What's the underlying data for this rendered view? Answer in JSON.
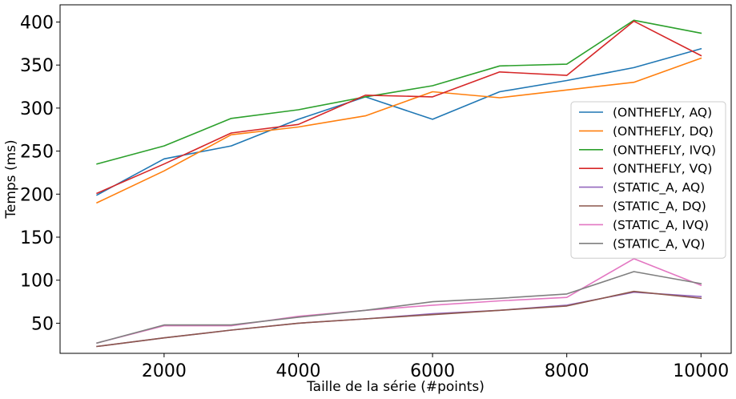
{
  "chart_data": {
    "type": "line",
    "title": "",
    "xlabel": "Taille de la série (#points)",
    "ylabel": "Temps (ms)",
    "xlim": [
      450,
      10450
    ],
    "ylim": [
      15,
      420
    ],
    "xticks": [
      2000,
      4000,
      6000,
      8000,
      10000
    ],
    "yticks": [
      50,
      100,
      150,
      200,
      250,
      300,
      350,
      400
    ],
    "grid": false,
    "legend_position": "center-right",
    "x": [
      1000,
      2000,
      3000,
      4000,
      5000,
      6000,
      7000,
      8000,
      9000,
      10000
    ],
    "series": [
      {
        "name": "(ONTHEFLY, AQ)",
        "color": "#1f77b4",
        "values": [
          199,
          241,
          256,
          287,
          313,
          287,
          319,
          332,
          347,
          369
        ]
      },
      {
        "name": "(ONTHEFLY, DQ)",
        "color": "#ff7f0e",
        "values": [
          190,
          227,
          269,
          278,
          291,
          319,
          312,
          321,
          330,
          358
        ]
      },
      {
        "name": "(ONTHEFLY, IVQ)",
        "color": "#2ca02c",
        "values": [
          235,
          256,
          288,
          298,
          313,
          326,
          349,
          351,
          402,
          387
        ]
      },
      {
        "name": "(ONTHEFLY, VQ)",
        "color": "#d62728",
        "values": [
          201,
          235,
          271,
          281,
          315,
          313,
          342,
          338,
          401,
          361
        ]
      },
      {
        "name": "(STATIC_A, AQ)",
        "color": "#9467bd",
        "values": [
          23,
          33,
          42,
          50,
          55,
          61,
          65,
          71,
          86,
          81
        ]
      },
      {
        "name": "(STATIC_A, DQ)",
        "color": "#8c564b",
        "values": [
          23,
          33,
          42,
          50,
          55,
          60,
          65,
          70,
          87,
          79
        ]
      },
      {
        "name": "(STATIC_A, IVQ)",
        "color": "#e377c2",
        "values": [
          27,
          47,
          47,
          58,
          65,
          71,
          76,
          80,
          125,
          94
        ]
      },
      {
        "name": "(STATIC_A, VQ)",
        "color": "#7f7f7f",
        "values": [
          27,
          48,
          48,
          57,
          65,
          75,
          79,
          84,
          110,
          96
        ]
      }
    ]
  }
}
